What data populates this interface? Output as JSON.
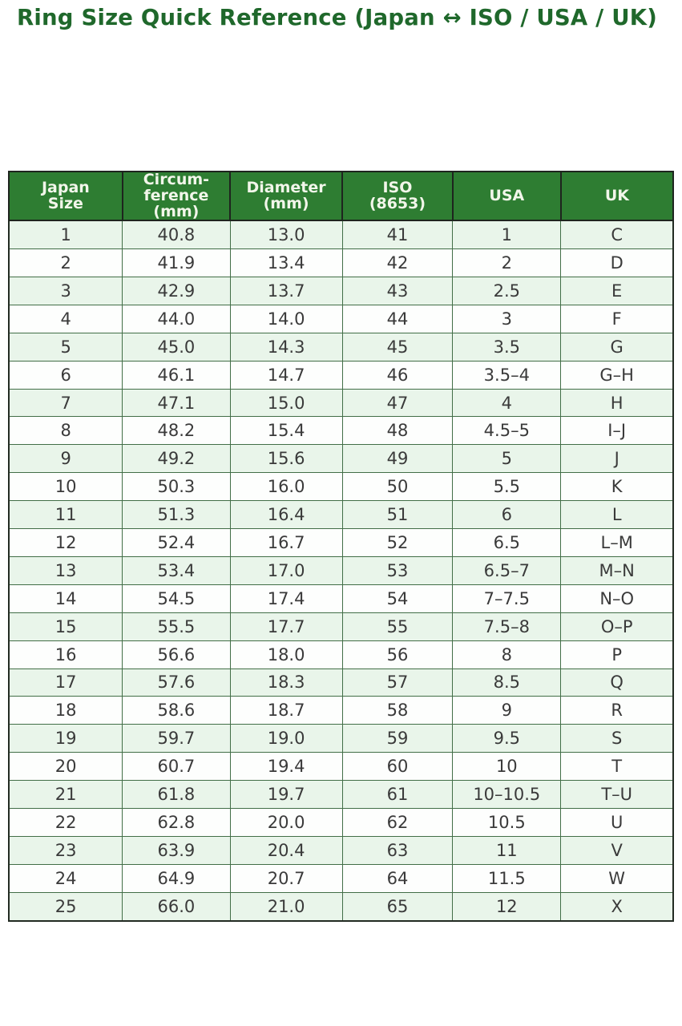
{
  "page": {
    "title": "Ring Size Quick Reference (Japan ↔ ISO / USA / UK)"
  },
  "colors": {
    "title_text": "#1f682b",
    "header_bg": "#2e7d32",
    "header_text": "#f2f6ea",
    "row_alt_bg": "#e9f5ea",
    "row_bg": "#fdfefd",
    "cell_text": "#3a3a3a",
    "grid_border": "#426e47",
    "header_border": "#1e241e"
  },
  "chart_data": {
    "type": "table",
    "title": "Ring Size Quick Reference (Japan ↔ ISO / USA / UK)",
    "columns": [
      "Japan Size",
      "Circumference (mm)",
      "Diameter (mm)",
      "ISO (8653)",
      "USA",
      "UK"
    ],
    "header_display": [
      "Japan\nSize",
      "Circum-\nference\n(mm)",
      "Diameter\n(mm)",
      "ISO\n(8653)",
      "USA",
      "UK"
    ],
    "rows": [
      [
        "1",
        "40.8",
        "13.0",
        "41",
        "1",
        "C"
      ],
      [
        "2",
        "41.9",
        "13.4",
        "42",
        "2",
        "D"
      ],
      [
        "3",
        "42.9",
        "13.7",
        "43",
        "2.5",
        "E"
      ],
      [
        "4",
        "44.0",
        "14.0",
        "44",
        "3",
        "F"
      ],
      [
        "5",
        "45.0",
        "14.3",
        "45",
        "3.5",
        "G"
      ],
      [
        "6",
        "46.1",
        "14.7",
        "46",
        "3.5–4",
        "G–H"
      ],
      [
        "7",
        "47.1",
        "15.0",
        "47",
        "4",
        "H"
      ],
      [
        "8",
        "48.2",
        "15.4",
        "48",
        "4.5–5",
        "I–J"
      ],
      [
        "9",
        "49.2",
        "15.6",
        "49",
        "5",
        "J"
      ],
      [
        "10",
        "50.3",
        "16.0",
        "50",
        "5.5",
        "K"
      ],
      [
        "11",
        "51.3",
        "16.4",
        "51",
        "6",
        "L"
      ],
      [
        "12",
        "52.4",
        "16.7",
        "52",
        "6.5",
        "L–M"
      ],
      [
        "13",
        "53.4",
        "17.0",
        "53",
        "6.5–7",
        "M–N"
      ],
      [
        "14",
        "54.5",
        "17.4",
        "54",
        "7–7.5",
        "N–O"
      ],
      [
        "15",
        "55.5",
        "17.7",
        "55",
        "7.5–8",
        "O–P"
      ],
      [
        "16",
        "56.6",
        "18.0",
        "56",
        "8",
        "P"
      ],
      [
        "17",
        "57.6",
        "18.3",
        "57",
        "8.5",
        "Q"
      ],
      [
        "18",
        "58.6",
        "18.7",
        "58",
        "9",
        "R"
      ],
      [
        "19",
        "59.7",
        "19.0",
        "59",
        "9.5",
        "S"
      ],
      [
        "20",
        "60.7",
        "19.4",
        "60",
        "10",
        "T"
      ],
      [
        "21",
        "61.8",
        "19.7",
        "61",
        "10–10.5",
        "T–U"
      ],
      [
        "22",
        "62.8",
        "20.0",
        "62",
        "10.5",
        "U"
      ],
      [
        "23",
        "63.9",
        "20.4",
        "63",
        "11",
        "V"
      ],
      [
        "24",
        "64.9",
        "20.7",
        "64",
        "11.5",
        "W"
      ],
      [
        "25",
        "66.0",
        "21.0",
        "65",
        "12",
        "X"
      ]
    ]
  }
}
